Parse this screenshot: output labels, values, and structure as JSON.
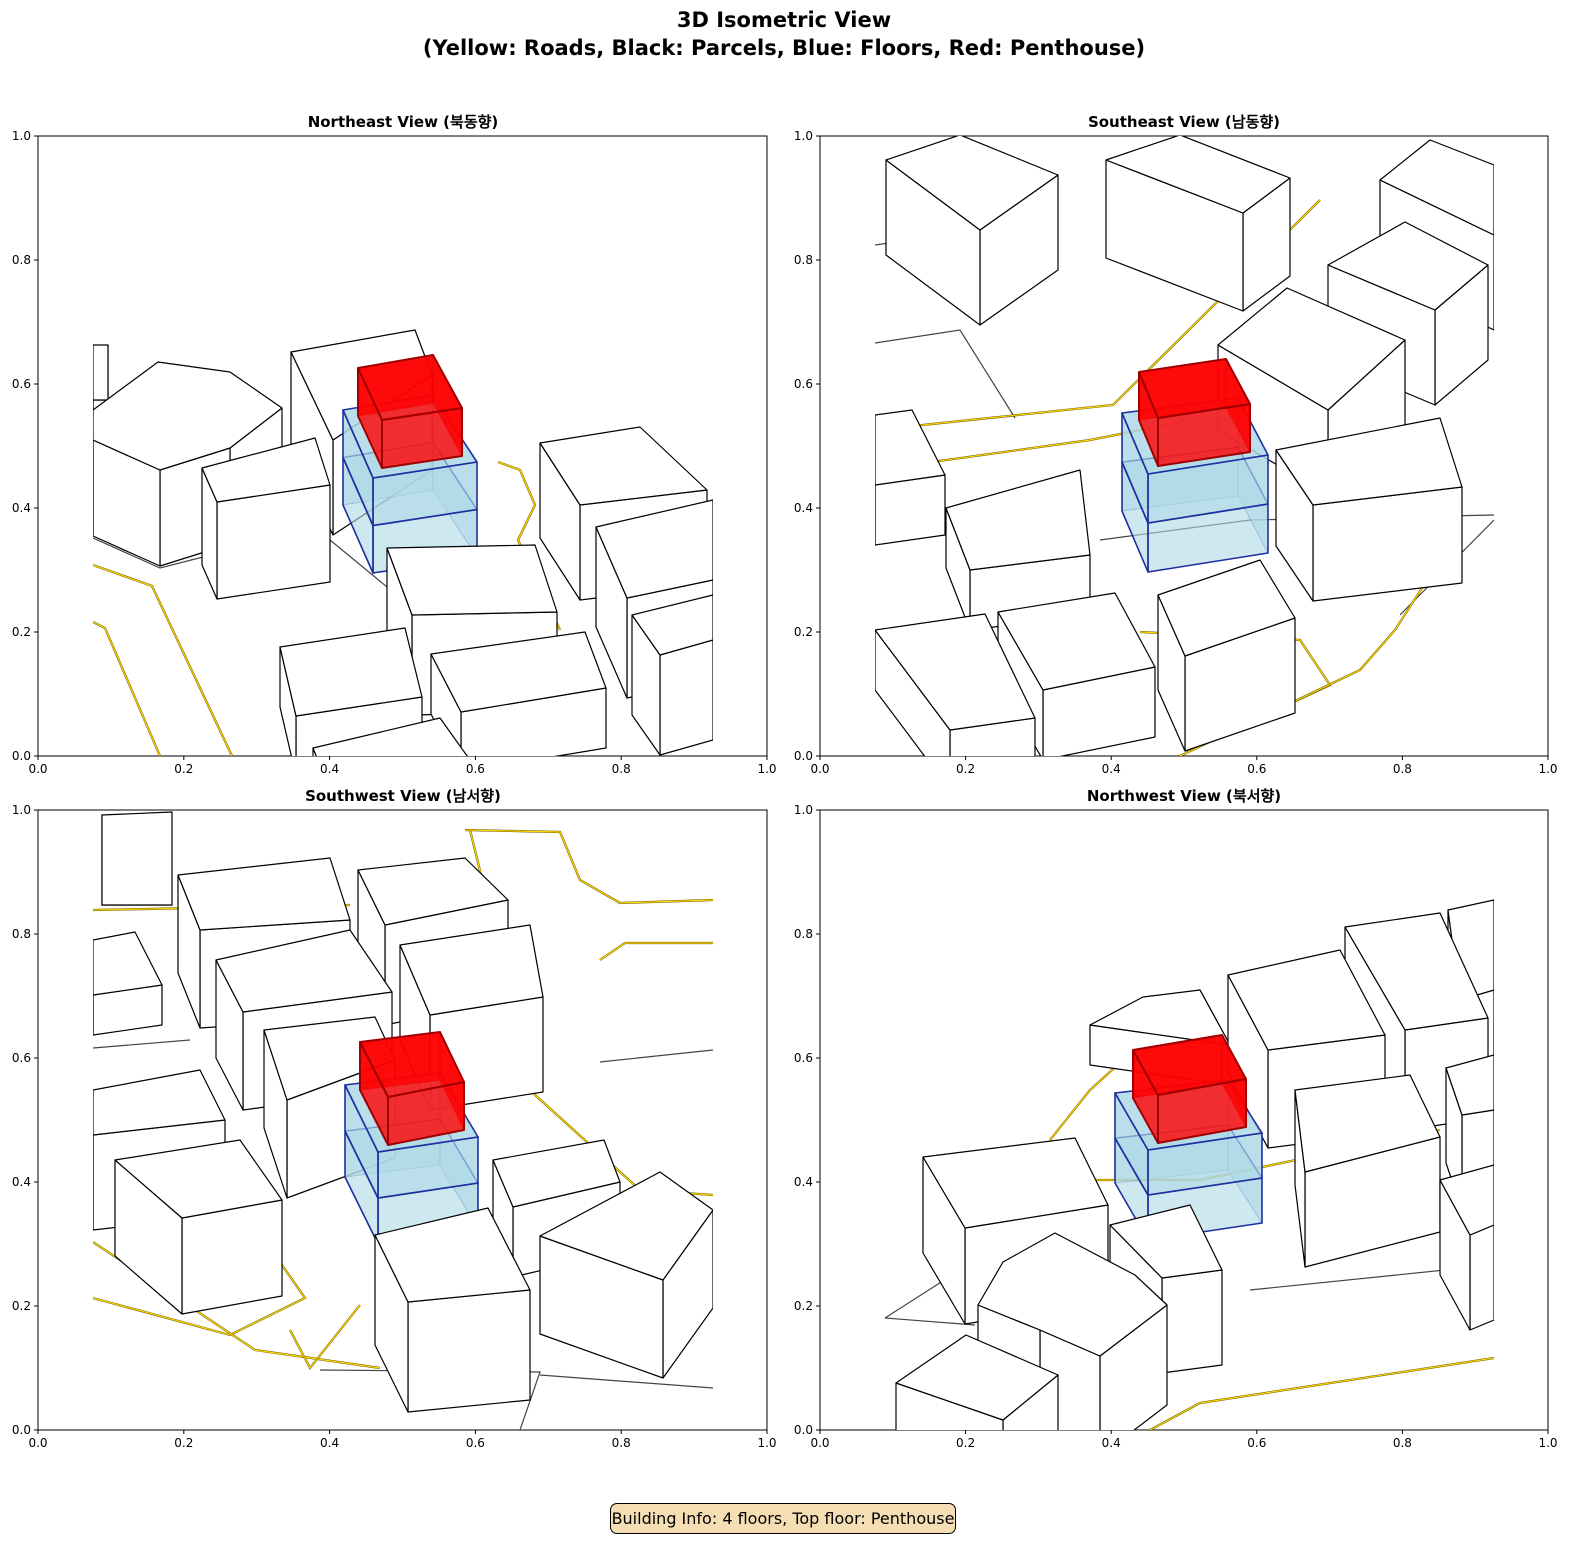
{
  "figure": {
    "title_line1": "3D Isometric View",
    "title_line2": "(Yellow: Roads, Black: Parcels, Blue: Floors, Red: Penthouse)",
    "info_box": "Building Info: 4 floors, Top floor: Penthouse"
  },
  "panels": [
    {
      "title": "Northeast View (북동향)"
    },
    {
      "title": "Southeast View (남동향)"
    },
    {
      "title": "Southwest View (남서향)"
    },
    {
      "title": "Northwest View (북서향)"
    }
  ],
  "axes": {
    "xlim": [
      0,
      1
    ],
    "ylim": [
      0,
      1
    ],
    "ticks": [
      "0.0",
      "0.2",
      "0.4",
      "0.6",
      "0.8",
      "1.0"
    ]
  },
  "colors": {
    "roads": "#ffd700",
    "parcels": "#000000",
    "floors": "#add8e6",
    "floor_edges": "#1f2fa0",
    "penthouse": "#ff0000",
    "info_box": "#f5deb3"
  },
  "building": {
    "floors": 4,
    "top_floor": "Penthouse"
  }
}
